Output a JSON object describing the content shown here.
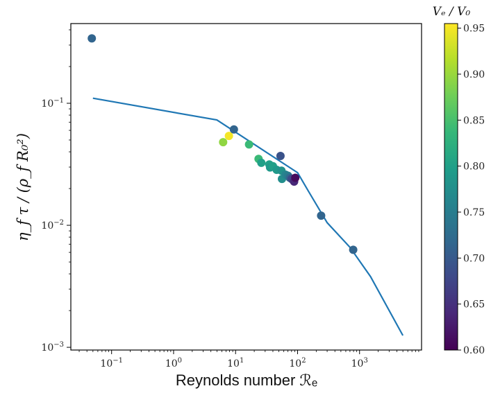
{
  "chart_data": {
    "type": "scatter",
    "title": "",
    "xlabel": "Reynolds number ℛₑ",
    "ylabel": "η_f τ / (ρ_f R₀²)",
    "xscale": "log",
    "yscale": "log",
    "xlim": [
      0.022,
      10000
    ],
    "ylim": [
      0.00095,
      0.45
    ],
    "x_ticks": [
      {
        "value": 0.1,
        "base": "10",
        "exp": "−1"
      },
      {
        "value": 1,
        "base": "10",
        "exp": "0"
      },
      {
        "value": 10,
        "base": "10",
        "exp": "1"
      },
      {
        "value": 100,
        "base": "10",
        "exp": "2"
      },
      {
        "value": 1000,
        "base": "10",
        "exp": "3"
      }
    ],
    "y_ticks": [
      {
        "value": 0.001,
        "base": "10",
        "exp": "−3"
      },
      {
        "value": 0.01,
        "base": "10",
        "exp": "−2"
      },
      {
        "value": 0.1,
        "base": "10",
        "exp": "−1"
      }
    ],
    "line": {
      "color": "#1f77b4",
      "x": [
        0.05,
        5,
        100,
        150,
        300,
        700,
        1500,
        5000
      ],
      "y": [
        0.11,
        0.073,
        0.027,
        0.019,
        0.0105,
        0.0066,
        0.0038,
        0.00125
      ]
    },
    "points": [
      {
        "x": 0.048,
        "y": 0.34,
        "c": 0.715
      },
      {
        "x": 6.3,
        "y": 0.048,
        "c": 0.895
      },
      {
        "x": 7.8,
        "y": 0.054,
        "c": 0.95
      },
      {
        "x": 9.4,
        "y": 0.061,
        "c": 0.715
      },
      {
        "x": 16.5,
        "y": 0.046,
        "c": 0.84
      },
      {
        "x": 23.5,
        "y": 0.035,
        "c": 0.84
      },
      {
        "x": 26,
        "y": 0.0325,
        "c": 0.8
      },
      {
        "x": 35,
        "y": 0.0315,
        "c": 0.8
      },
      {
        "x": 36,
        "y": 0.0298,
        "c": 0.79
      },
      {
        "x": 40,
        "y": 0.0305,
        "c": 0.8
      },
      {
        "x": 46,
        "y": 0.0285,
        "c": 0.79
      },
      {
        "x": 53,
        "y": 0.037,
        "c": 0.69
      },
      {
        "x": 55,
        "y": 0.028,
        "c": 0.78
      },
      {
        "x": 56,
        "y": 0.024,
        "c": 0.775
      },
      {
        "x": 64,
        "y": 0.026,
        "c": 0.76
      },
      {
        "x": 70,
        "y": 0.0255,
        "c": 0.75
      },
      {
        "x": 75,
        "y": 0.0245,
        "c": 0.72
      },
      {
        "x": 80,
        "y": 0.024,
        "c": 0.68
      },
      {
        "x": 88,
        "y": 0.0228,
        "c": 0.64
      },
      {
        "x": 92,
        "y": 0.0245,
        "c": 0.61
      },
      {
        "x": 240,
        "y": 0.012,
        "c": 0.715
      },
      {
        "x": 790,
        "y": 0.0063,
        "c": 0.715
      }
    ],
    "colorbar": {
      "title": "Vₑ / V₀",
      "range": [
        0.6,
        0.955
      ],
      "ticks": [
        "0.60",
        "0.65",
        "0.70",
        "0.75",
        "0.80",
        "0.85",
        "0.90",
        "0.95"
      ],
      "colormap": "viridis",
      "stops": [
        "#440154",
        "#482878",
        "#3e4989",
        "#31688e",
        "#26828e",
        "#1f9e89",
        "#35b779",
        "#6ece58",
        "#b5de2b",
        "#fde725"
      ]
    },
    "legend": "none",
    "grid": false
  }
}
